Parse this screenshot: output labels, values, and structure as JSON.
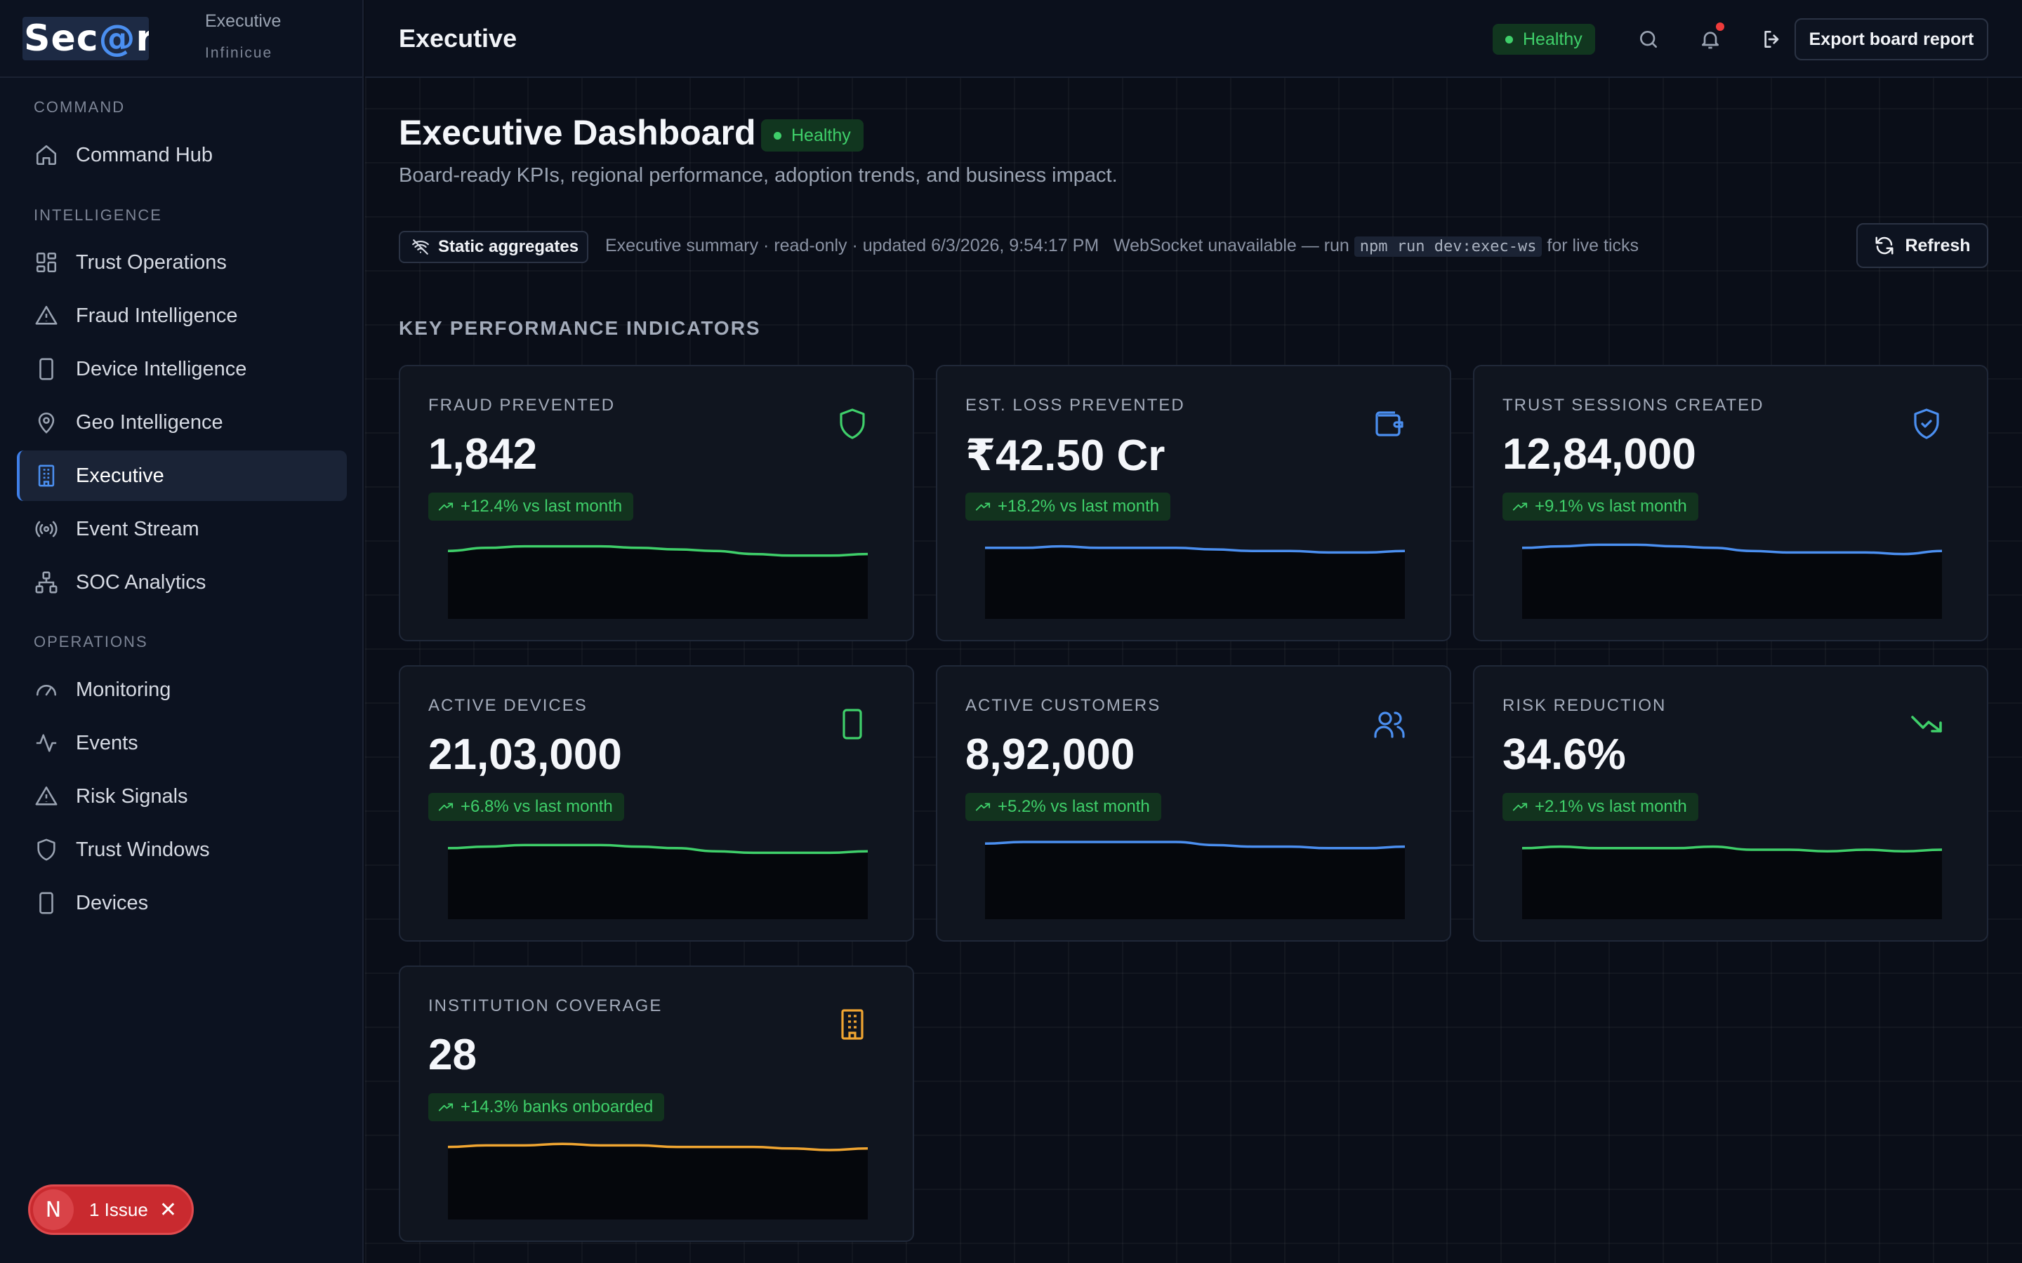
{
  "brand": {
    "logo_text_a": "Sec",
    "logo_text_at": "@",
    "logo_text_b": "r",
    "title": "Executive",
    "subtitle": "Infinicue"
  },
  "sidebar": {
    "sections": [
      {
        "label": "COMMAND"
      },
      {
        "label": "INTELLIGENCE"
      },
      {
        "label": "OPERATIONS"
      }
    ],
    "items": [
      {
        "label": "Command Hub",
        "icon": "home-icon"
      },
      {
        "label": "Trust Operations",
        "icon": "grid-icon"
      },
      {
        "label": "Fraud Intelligence",
        "icon": "alert-triangle-icon"
      },
      {
        "label": "Device Intelligence",
        "icon": "smartphone-icon"
      },
      {
        "label": "Geo Intelligence",
        "icon": "map-pin-icon"
      },
      {
        "label": "Executive",
        "icon": "building-icon",
        "active": true
      },
      {
        "label": "Event Stream",
        "icon": "radio-icon"
      },
      {
        "label": "SOC Analytics",
        "icon": "network-icon"
      },
      {
        "label": "Monitoring",
        "icon": "gauge-icon"
      },
      {
        "label": "Events",
        "icon": "activity-icon"
      },
      {
        "label": "Risk Signals",
        "icon": "alert-triangle-icon"
      },
      {
        "label": "Trust Windows",
        "icon": "shield-icon"
      },
      {
        "label": "Devices",
        "icon": "smartphone-icon"
      }
    ]
  },
  "issue": {
    "badge": "N",
    "label": "1 Issue"
  },
  "topbar": {
    "title": "Executive",
    "status": "Healthy",
    "export_label": "Export board report"
  },
  "page": {
    "title": "Executive Dashboard",
    "status": "Healthy",
    "description": "Board-ready KPIs, regional performance, adoption trends, and business impact.",
    "chip": "Static aggregates",
    "status_text": "Executive summary · read-only · updated 6/3/2026, 9:54:17 PM",
    "ws_prefix": "WebSocket unavailable — run",
    "ws_command": "npm run dev:exec-ws",
    "ws_suffix": "for live ticks",
    "refresh_label": "Refresh",
    "kpi_heading": "KEY PERFORMANCE INDICATORS"
  },
  "colors": {
    "green": "#3fcf6a",
    "blue": "#4b8ff0",
    "amber": "#f0a531",
    "red": "#ef3b3b"
  },
  "kpis": [
    {
      "label": "FRAUD PREVENTED",
      "value": "1,842",
      "trend": "+12.4% vs last month",
      "icon": "shield-icon",
      "color": "#3fcf6a",
      "series": [
        40,
        42,
        43,
        43,
        43,
        42,
        41,
        40,
        38,
        37,
        37,
        38
      ]
    },
    {
      "label": "EST. LOSS PREVENTED",
      "value": "₹42.50 Cr",
      "trend": "+18.2% vs last month",
      "icon": "wallet-icon",
      "color": "#4b8ff0",
      "series": [
        42,
        42,
        43,
        42,
        42,
        42,
        41,
        40,
        40,
        39,
        39,
        40
      ]
    },
    {
      "label": "TRUST SESSIONS CREATED",
      "value": "12,84,000",
      "trend": "+9.1% vs last month",
      "icon": "shield-check-icon",
      "color": "#4b8ff0",
      "series": [
        42,
        43,
        44,
        44,
        43,
        42,
        40,
        39,
        39,
        39,
        38,
        40
      ]
    },
    {
      "label": "ACTIVE DEVICES",
      "value": "21,03,000",
      "trend": "+6.8% vs last month",
      "icon": "smartphone-icon",
      "color": "#3fcf6a",
      "series": [
        42,
        43,
        44,
        44,
        44,
        43,
        42,
        40,
        39,
        39,
        39,
        40
      ]
    },
    {
      "label": "ACTIVE CUSTOMERS",
      "value": "8,92,000",
      "trend": "+5.2% vs last month",
      "icon": "users-icon",
      "color": "#4b8ff0",
      "series": [
        45,
        46,
        46,
        46,
        46,
        46,
        44,
        43,
        43,
        42,
        42,
        43
      ]
    },
    {
      "label": "RISK REDUCTION",
      "value": "34.6%",
      "trend": "+2.1% vs last month",
      "icon": "trending-down-icon",
      "color": "#3fcf6a",
      "series": [
        42,
        43,
        42,
        42,
        42,
        43,
        41,
        41,
        40,
        41,
        40,
        41
      ]
    },
    {
      "label": "INSTITUTION COVERAGE",
      "value": "28",
      "trend": "+14.3% banks onboarded",
      "icon": "building-icon",
      "color": "#f0a531",
      "series": [
        43,
        44,
        44,
        45,
        44,
        44,
        43,
        43,
        43,
        42,
        41,
        42
      ]
    }
  ]
}
